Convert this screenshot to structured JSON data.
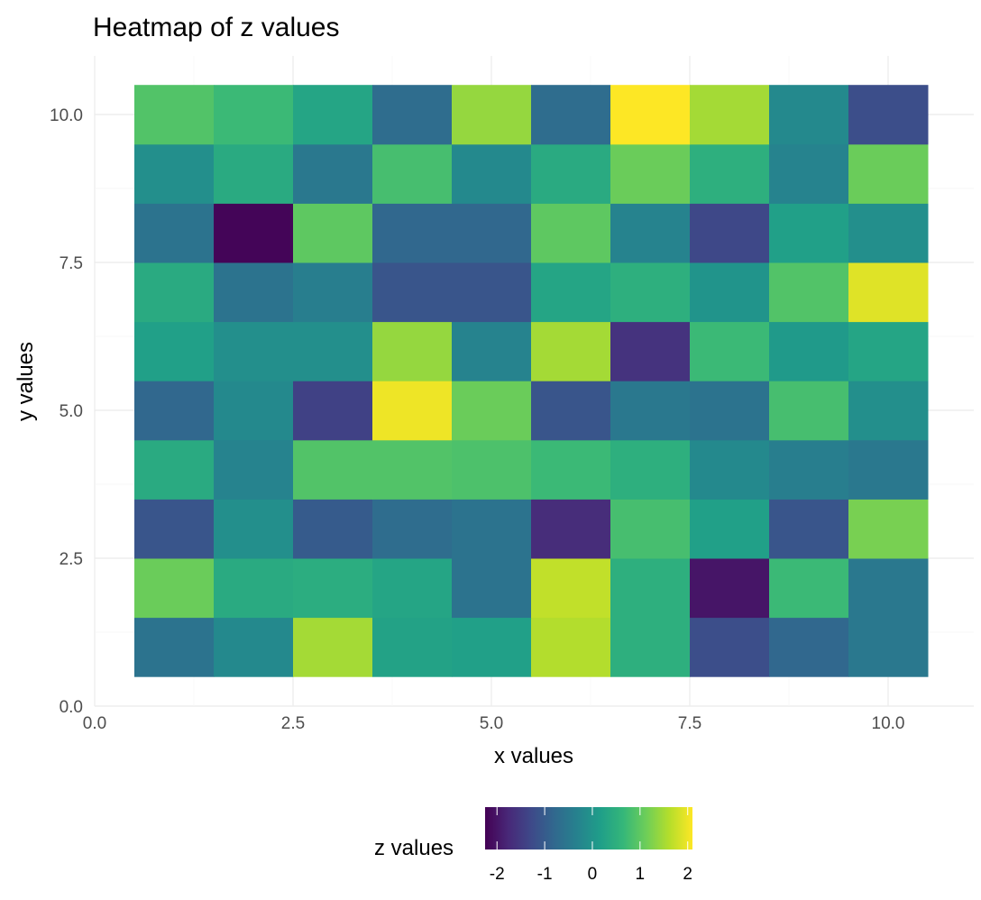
{
  "chart_data": {
    "type": "heatmap",
    "title": "Heatmap of z values",
    "xlabel": "x values",
    "ylabel": "y values",
    "xlim": [
      0,
      10.5
    ],
    "ylim": [
      0,
      10.5
    ],
    "x_ticks": [
      0,
      2.5,
      5,
      7.5,
      10
    ],
    "x_tick_labels": [
      "0.0",
      "2.5",
      "5.0",
      "7.5",
      "10.0"
    ],
    "y_ticks": [
      0,
      2.5,
      5,
      7.5,
      10
    ],
    "y_tick_labels": [
      "0.0",
      "2.5",
      "5.0",
      "7.5",
      "10.0"
    ],
    "grid": true,
    "x": [
      1,
      2,
      3,
      4,
      5,
      6,
      7,
      8,
      9,
      10
    ],
    "y": [
      1,
      2,
      3,
      4,
      5,
      6,
      7,
      8,
      9,
      10
    ],
    "z_rows_by_y": [
      [
        -0.6,
        -0.2,
        1.5,
        0.25,
        0.2,
        1.6,
        0.5,
        -1.2,
        -0.8,
        -0.5
      ],
      [
        1.1,
        0.4,
        0.45,
        0.3,
        -0.6,
        1.7,
        0.5,
        -2.0,
        0.7,
        -0.5
      ],
      [
        -1.1,
        -0.1,
        -1.0,
        -0.7,
        -0.6,
        -1.7,
        0.8,
        0.2,
        -1.1,
        1.2
      ],
      [
        0.4,
        -0.3,
        0.9,
        0.9,
        0.85,
        0.7,
        0.5,
        -0.2,
        -0.4,
        -0.5
      ],
      [
        -0.8,
        -0.2,
        -1.4,
        2.0,
        1.1,
        -1.1,
        -0.5,
        -0.6,
        0.8,
        -0.1
      ],
      [
        0.2,
        -0.1,
        -0.1,
        1.4,
        -0.3,
        1.5,
        -1.6,
        0.7,
        0.1,
        0.3
      ],
      [
        0.4,
        -0.6,
        -0.4,
        -1.1,
        -1.1,
        0.3,
        0.5,
        0.0,
        0.9,
        1.9
      ],
      [
        -0.6,
        -2.2,
        1.0,
        -0.8,
        -0.8,
        1.0,
        -0.3,
        -1.3,
        0.2,
        -0.1
      ],
      [
        -0.1,
        0.4,
        -0.5,
        0.8,
        -0.2,
        0.4,
        1.1,
        0.5,
        -0.3,
        1.1
      ],
      [
        0.9,
        0.7,
        0.3,
        -0.7,
        1.4,
        -0.7,
        2.1,
        1.5,
        -0.2,
        -1.2
      ]
    ],
    "colorscale": "viridis",
    "zlim": [
      -2.25,
      2.1
    ],
    "legend": {
      "title": "z values",
      "position": "bottom",
      "ticks": [
        -2,
        -1,
        0,
        1,
        2
      ],
      "tick_labels": [
        "-2",
        "-1",
        "0",
        "1",
        "2"
      ]
    }
  }
}
